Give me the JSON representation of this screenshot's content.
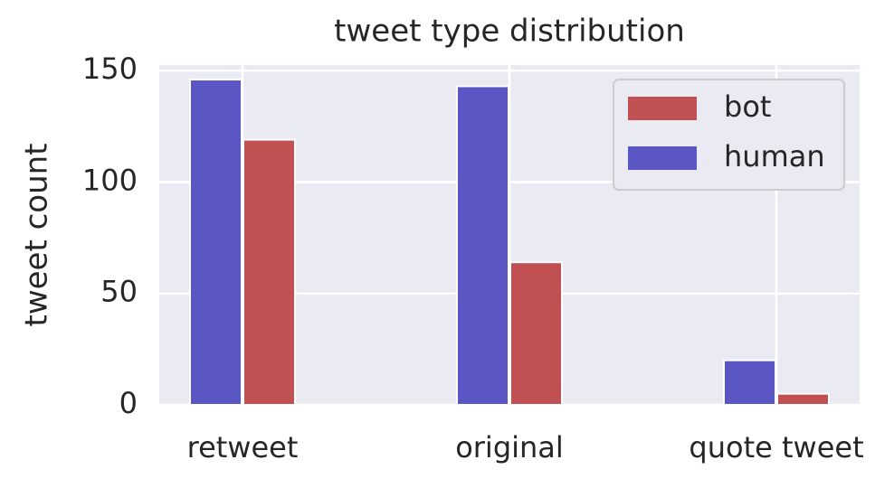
{
  "chart_data": {
    "type": "bar",
    "title": "tweet type distribution",
    "y_label": "tweet count",
    "categories": [
      "retweet",
      "original",
      "quote tweet"
    ],
    "series": [
      {
        "name": "bot",
        "color": "#c05052",
        "values": [
          119,
          64,
          5
        ]
      },
      {
        "name": "human",
        "color": "#5a56c4",
        "values": [
          146,
          143,
          20
        ]
      }
    ],
    "ylim": [
      0,
      152.5
    ],
    "yticks": [
      0,
      50,
      100,
      150
    ],
    "grid": true,
    "legend": "upper right"
  }
}
